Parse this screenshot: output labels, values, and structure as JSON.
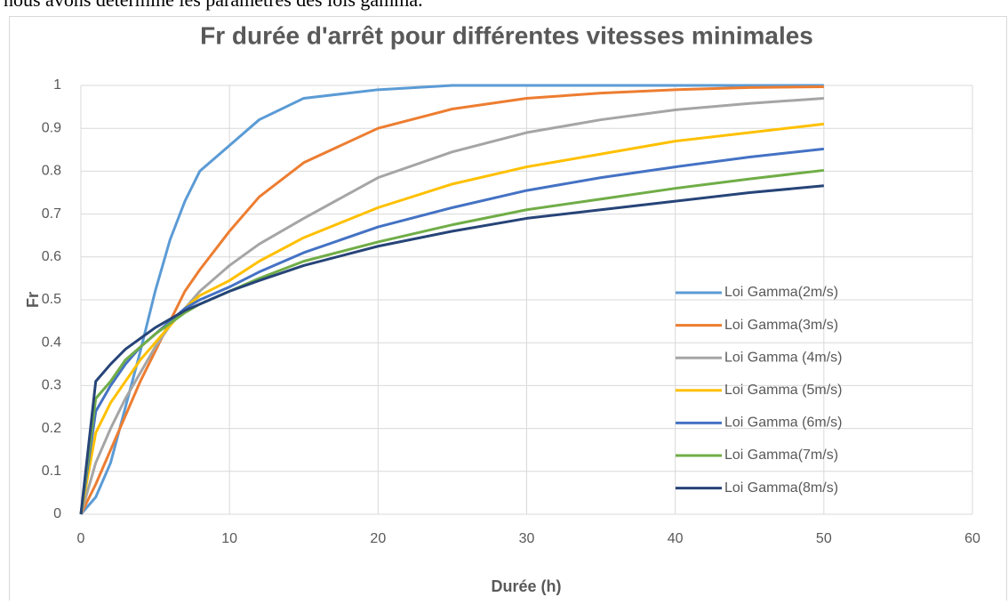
{
  "context_text": "nous avons déterminé les paramètres des lois gamma.",
  "chart_data": {
    "type": "line",
    "title": "Fr durée d'arrêt pour différentes vitesses minimales",
    "xlabel": "Durée (h)",
    "ylabel": "Fr",
    "x": [
      0,
      1,
      2,
      3,
      4,
      5,
      6,
      7,
      8,
      10,
      12,
      15,
      20,
      25,
      30,
      35,
      40,
      45,
      50
    ],
    "series": [
      {
        "name": "Loi Gamma(2m/s)",
        "color": "#5b9bd5",
        "values": [
          0,
          0.04,
          0.12,
          0.25,
          0.38,
          0.52,
          0.64,
          0.73,
          0.8,
          0.86,
          0.92,
          0.97,
          0.99,
          1,
          1,
          1,
          1,
          1,
          1
        ]
      },
      {
        "name": "Loi Gamma(3m/s)",
        "color": "#ed7d31",
        "values": [
          0,
          0.07,
          0.15,
          0.23,
          0.31,
          0.38,
          0.45,
          0.52,
          0.57,
          0.66,
          0.74,
          0.82,
          0.9,
          0.945,
          0.97,
          0.982,
          0.99,
          0.995,
          0.997
        ]
      },
      {
        "name": "Loi Gamma (4m/s)",
        "color": "#a5a5a5",
        "values": [
          0,
          0.12,
          0.2,
          0.27,
          0.33,
          0.39,
          0.44,
          0.48,
          0.52,
          0.58,
          0.63,
          0.69,
          0.785,
          0.845,
          0.89,
          0.92,
          0.943,
          0.958,
          0.97
        ]
      },
      {
        "name": "Loi Gamma (5m/s)",
        "color": "#ffc000",
        "values": [
          0,
          0.19,
          0.26,
          0.31,
          0.36,
          0.4,
          0.44,
          0.48,
          0.51,
          0.545,
          0.59,
          0.645,
          0.715,
          0.77,
          0.81,
          0.84,
          0.87,
          0.89,
          0.91
        ]
      },
      {
        "name": "Loi Gamma (6m/s)",
        "color": "#4472c4",
        "values": [
          0,
          0.24,
          0.3,
          0.35,
          0.39,
          0.42,
          0.45,
          0.48,
          0.5,
          0.53,
          0.565,
          0.61,
          0.67,
          0.715,
          0.755,
          0.785,
          0.81,
          0.833,
          0.852
        ]
      },
      {
        "name": "Loi Gamma(7m/s)",
        "color": "#70ad47",
        "values": [
          0,
          0.27,
          0.31,
          0.36,
          0.39,
          0.42,
          0.445,
          0.47,
          0.49,
          0.52,
          0.55,
          0.59,
          0.635,
          0.675,
          0.71,
          0.735,
          0.76,
          0.782,
          0.802
        ]
      },
      {
        "name": "Loi Gamma(8m/s)",
        "color": "#264478",
        "values": [
          0,
          0.31,
          0.35,
          0.385,
          0.41,
          0.435,
          0.455,
          0.475,
          0.49,
          0.52,
          0.545,
          0.58,
          0.625,
          0.66,
          0.69,
          0.71,
          0.73,
          0.75,
          0.766
        ]
      }
    ],
    "xlim": [
      0,
      60
    ],
    "xticks": [
      0,
      10,
      20,
      30,
      40,
      50,
      60
    ],
    "ylim": [
      0,
      1
    ],
    "yticks": [
      0,
      0.1,
      0.2,
      0.3,
      0.4,
      0.5,
      0.6,
      0.7,
      0.8,
      0.9,
      1
    ],
    "grid": true,
    "legend": "right"
  }
}
